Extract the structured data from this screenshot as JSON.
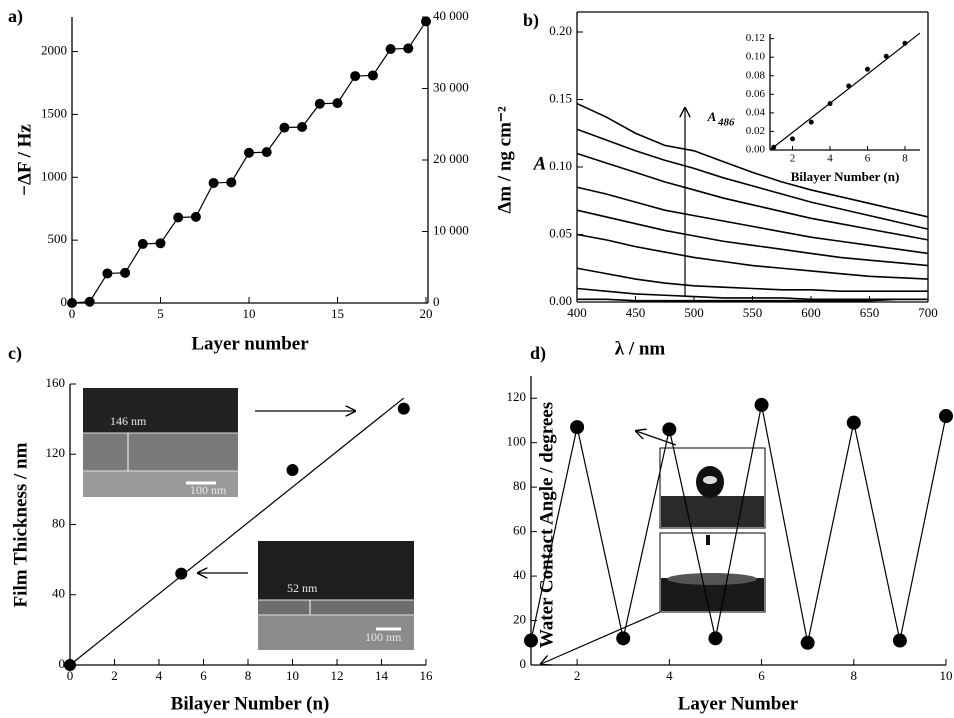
{
  "chart_data": [
    {
      "type": "line",
      "panel_label": "a)",
      "xlabel": "Layer number",
      "ylabel": "−ΔF / Hz",
      "y2label": "Δm / ng cm⁻²",
      "x": [
        0,
        1,
        2,
        3,
        4,
        5,
        6,
        7,
        8,
        9,
        10,
        11,
        12,
        13,
        14,
        15,
        16,
        17,
        18,
        19,
        20
      ],
      "series": [
        {
          "color": "#000000",
          "values": [
            0,
            10,
            235,
            240,
            470,
            475,
            680,
            685,
            955,
            960,
            1195,
            1200,
            1395,
            1400,
            1585,
            1590,
            1805,
            1810,
            2020,
            2025,
            2240
          ]
        }
      ],
      "markers": true,
      "xlim": [
        0,
        20
      ],
      "ylim": [
        0,
        2275
      ],
      "xticks": [
        0,
        5,
        10,
        15,
        20
      ],
      "yticks": [
        0,
        500,
        1000,
        1500,
        2000
      ],
      "y2lim": [
        0,
        40000
      ],
      "y2ticks": [
        0,
        {
          "value": 10000,
          "label": "10 000"
        },
        {
          "value": 20000,
          "label": "20 000"
        },
        {
          "value": 30000,
          "label": "30 000"
        },
        {
          "value": 40000,
          "label": "40 000"
        }
      ]
    },
    {
      "type": "line",
      "panel_label": "b)",
      "xlabel": "λ / nm",
      "ylabel": "A",
      "x": [
        400,
        425,
        450,
        475,
        500,
        525,
        550,
        575,
        600,
        625,
        650,
        675,
        700
      ],
      "series": [
        {
          "color": "#000000",
          "values": [
            0.002,
            0.002,
            0.001,
            0.001,
            0.001,
            0.001,
            0.001,
            0.001,
            0.001,
            0.001,
            0.001,
            0.002,
            0.002
          ]
        },
        {
          "color": "#000000",
          "values": [
            0.01,
            0.008,
            0.006,
            0.005,
            0.004,
            0.003,
            0.003,
            0.003,
            0.002,
            0.002,
            0.002,
            0.002,
            0.002
          ]
        },
        {
          "color": "#000000",
          "values": [
            0.025,
            0.021,
            0.017,
            0.014,
            0.012,
            0.011,
            0.01,
            0.009,
            0.009,
            0.008,
            0.008,
            0.008,
            0.008
          ]
        },
        {
          "color": "#000000",
          "values": [
            0.05,
            0.046,
            0.041,
            0.037,
            0.033,
            0.03,
            0.027,
            0.025,
            0.023,
            0.021,
            0.019,
            0.018,
            0.017
          ]
        },
        {
          "color": "#000000",
          "values": [
            0.068,
            0.063,
            0.058,
            0.053,
            0.049,
            0.045,
            0.042,
            0.039,
            0.036,
            0.033,
            0.031,
            0.029,
            0.027
          ]
        },
        {
          "color": "#000000",
          "values": [
            0.085,
            0.08,
            0.074,
            0.068,
            0.064,
            0.06,
            0.056,
            0.052,
            0.048,
            0.045,
            0.042,
            0.039,
            0.036
          ]
        },
        {
          "color": "#000000",
          "values": [
            0.11,
            0.103,
            0.096,
            0.089,
            0.083,
            0.077,
            0.072,
            0.067,
            0.062,
            0.058,
            0.054,
            0.05,
            0.046
          ]
        },
        {
          "color": "#000000",
          "values": [
            0.128,
            0.12,
            0.112,
            0.105,
            0.099,
            0.092,
            0.086,
            0.08,
            0.074,
            0.069,
            0.064,
            0.059,
            0.054
          ]
        },
        {
          "color": "#000000",
          "values": [
            0.147,
            0.137,
            0.125,
            0.116,
            0.112,
            0.104,
            0.096,
            0.089,
            0.083,
            0.078,
            0.073,
            0.068,
            0.063
          ]
        }
      ],
      "markers": false,
      "xlim": [
        400,
        700
      ],
      "ylim": [
        0,
        0.2
      ],
      "xticks": [
        400,
        450,
        500,
        550,
        600,
        650,
        700
      ],
      "yticks": [
        {
          "value": 0,
          "label": "0.00"
        },
        {
          "value": 0.05,
          "label": "0.05"
        },
        {
          "value": 0.1,
          "label": "0.10"
        },
        {
          "value": 0.15,
          "label": "0.15"
        },
        {
          "value": 0.2,
          "label": "0.20"
        }
      ]
    },
    {
      "type": "scatter",
      "xlabel": "Bilayer Number (n)",
      "ylabel": "A",
      "ylabel_subscript": "486",
      "x": [
        1,
        2,
        3,
        4,
        5,
        6,
        7,
        8
      ],
      "series": [
        {
          "color": "#000000",
          "values": [
            0.003,
            0.012,
            0.03,
            0.05,
            0.069,
            0.087,
            0.101,
            0.115
          ]
        }
      ],
      "fit": {
        "x": [
          0.8,
          8.8
        ],
        "values": [
          0,
          0.126
        ]
      },
      "xlim": [
        0.8,
        8.8
      ],
      "ylim": [
        0,
        0.125
      ],
      "xticks": [
        2,
        4,
        6,
        8
      ],
      "yticks": [
        {
          "value": 0,
          "label": "0.00"
        },
        {
          "value": 0.02,
          "label": "0.02"
        },
        {
          "value": 0.04,
          "label": "0.04"
        },
        {
          "value": 0.06,
          "label": "0.06"
        },
        {
          "value": 0.08,
          "label": "0.08"
        },
        {
          "value": 0.1,
          "label": "0.10"
        },
        {
          "value": 0.12,
          "label": "0.12"
        }
      ]
    },
    {
      "type": "scatter",
      "panel_label": "c)",
      "xlabel": "Bilayer Number (n)",
      "ylabel": "Film Thickness / nm",
      "x": [
        0,
        5,
        10,
        15
      ],
      "series": [
        {
          "color": "#000000",
          "values": [
            0,
            52,
            111,
            146
          ]
        }
      ],
      "fit": {
        "x": [
          0,
          15
        ],
        "values": [
          0,
          152
        ]
      },
      "xlim": [
        0,
        16
      ],
      "ylim": [
        0,
        160
      ],
      "xticks": [
        0,
        2,
        4,
        6,
        8,
        10,
        12,
        14,
        16
      ],
      "yticks": [
        0,
        40,
        80,
        120,
        160
      ],
      "annotations": [
        "146 nm",
        "100 nm",
        "52 nm",
        "100 nm"
      ]
    },
    {
      "type": "line",
      "panel_label": "d)",
      "xlabel": "Layer Number",
      "ylabel": "Water Contact Angle / degrees",
      "x": [
        1,
        2,
        3,
        4,
        5,
        6,
        7,
        8,
        9,
        10
      ],
      "series": [
        {
          "color": "#000000",
          "values": [
            11,
            107,
            12,
            106,
            12,
            117,
            10,
            109,
            11,
            112
          ]
        }
      ],
      "markers": true,
      "xlim": [
        1,
        10
      ],
      "ylim": [
        0,
        130
      ],
      "xticks": [
        2,
        4,
        6,
        8,
        10
      ],
      "yticks": [
        0,
        20,
        40,
        60,
        80,
        100,
        120
      ]
    }
  ]
}
